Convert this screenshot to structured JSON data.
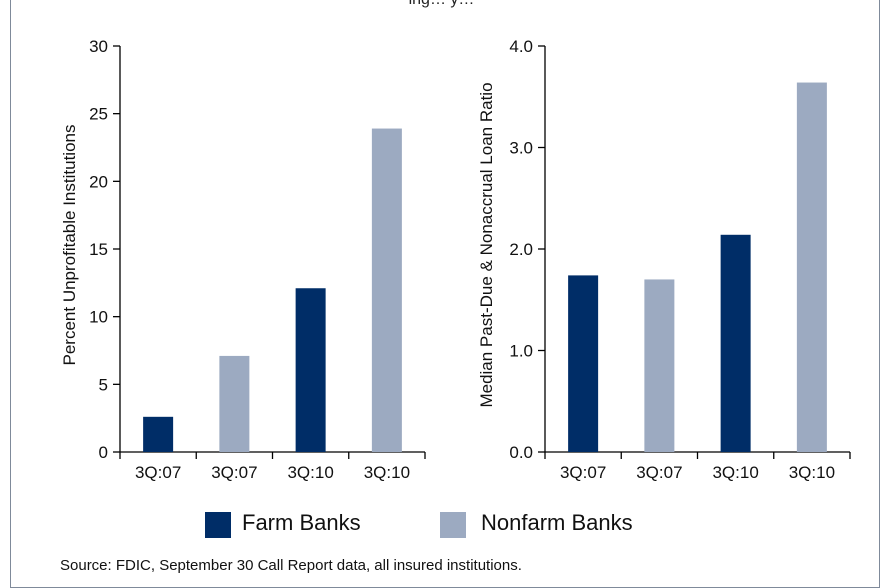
{
  "top_note": "ing…                              y…",
  "colors": {
    "farm": "#002d67",
    "nonfarm": "#9caac1",
    "axis": "#000000"
  },
  "legend": {
    "farm_label": "Farm Banks",
    "nonfarm_label": "Nonfarm Banks"
  },
  "source": "Source: FDIC, September 30 Call Report data, all insured institutions.",
  "chart_data": [
    {
      "type": "bar",
      "ylabel": "Percent Unprofitable Institutions",
      "categories": [
        "3Q:07",
        "3Q:07",
        "3Q:10",
        "3Q:10"
      ],
      "series_of_bar": [
        "Farm Banks",
        "Nonfarm Banks",
        "Farm Banks",
        "Nonfarm Banks"
      ],
      "values": [
        2.6,
        7.1,
        12.1,
        23.9
      ],
      "ylim": [
        0,
        30
      ],
      "yticks": [
        "0",
        "5",
        "10",
        "15",
        "20",
        "25",
        "30"
      ],
      "ytick_values": [
        0,
        5,
        10,
        15,
        20,
        25,
        30
      ],
      "grid": false
    },
    {
      "type": "bar",
      "ylabel": "Median Past-Due & Nonaccrual Loan Ratio",
      "categories": [
        "3Q:07",
        "3Q:07",
        "3Q:10",
        "3Q:10"
      ],
      "series_of_bar": [
        "Farm Banks",
        "Nonfarm Banks",
        "Farm Banks",
        "Nonfarm Banks"
      ],
      "values": [
        1.74,
        1.7,
        2.14,
        3.64
      ],
      "ylim": [
        0,
        4
      ],
      "yticks": [
        "0.0",
        "1.0",
        "2.0",
        "3.0",
        "4.0"
      ],
      "ytick_values": [
        0,
        1,
        2,
        3,
        4
      ],
      "grid": false
    }
  ]
}
